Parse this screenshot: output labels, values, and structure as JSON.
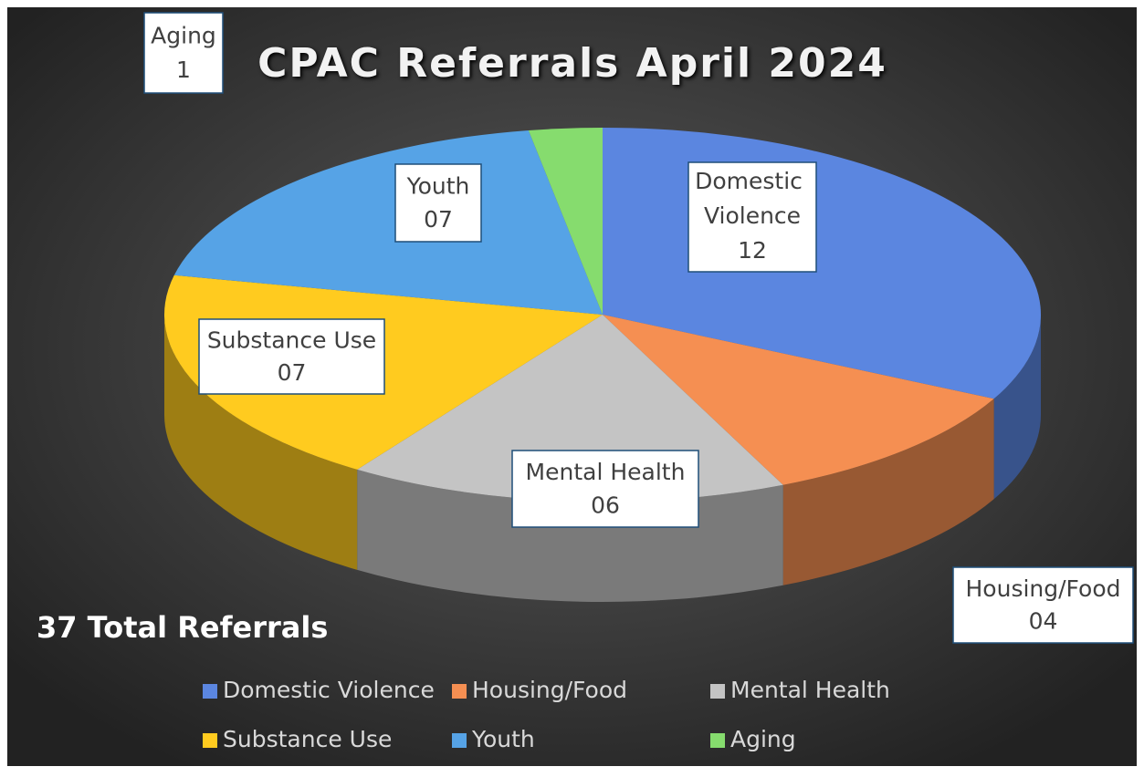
{
  "chart_data": {
    "type": "pie3d",
    "title": "CPAC Referrals April 2024",
    "categories": [
      "Domestic Violence",
      "Housing/Food",
      "Mental Health",
      "Substance Use",
      "Youth",
      "Aging"
    ],
    "values": [
      12,
      4,
      6,
      7,
      7,
      1
    ],
    "value_labels": [
      "12",
      "04",
      "06",
      "07",
      "07",
      "1"
    ],
    "colors": [
      "#5b86e0",
      "#f58f52",
      "#c4c4c4",
      "#ffcb1f",
      "#56a3e6",
      "#86dc6e"
    ],
    "annotation": "37 Total Referrals",
    "legend": "bottom"
  }
}
